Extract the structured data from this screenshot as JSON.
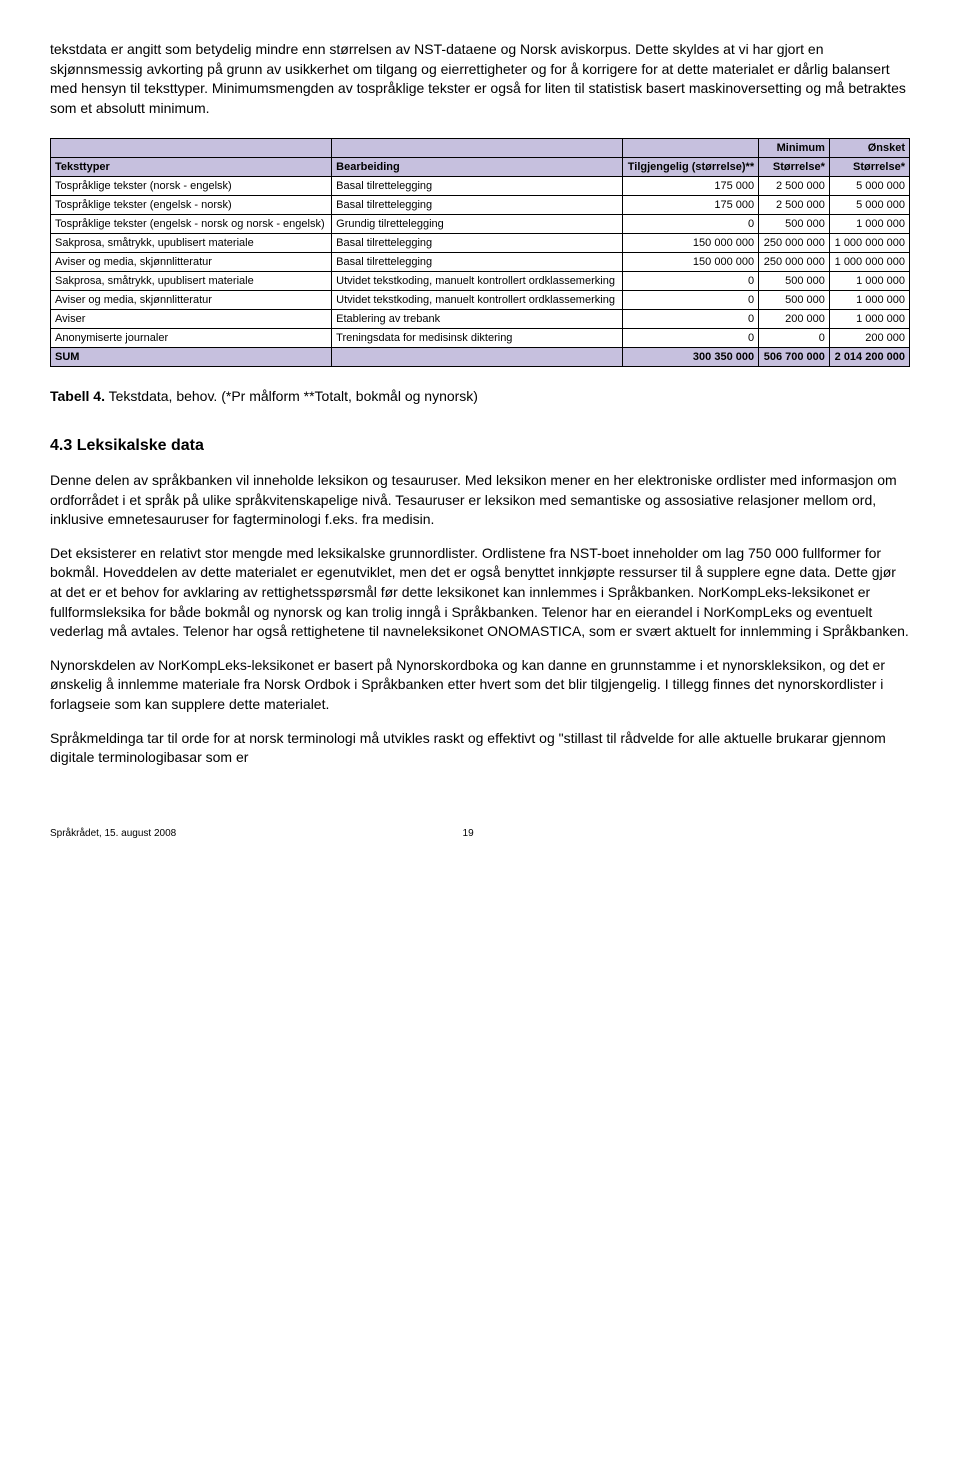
{
  "intro": {
    "p1": "tekstdata er angitt som betydelig mindre enn størrelsen av NST-dataene og Norsk aviskorpus. Dette skyldes at vi har gjort en skjønnsmessig avkorting på grunn av usikkerhet om tilgang og eierrettigheter og for å korrigere for at dette materialet er dårlig balansert med hensyn til teksttyper. Minimumsmengden av tospråklige tekster er også for liten til statistisk basert maskinoversetting og må betraktes som et absolutt minimum."
  },
  "table": {
    "top_headers": {
      "minimum": "Minimum",
      "onsket": "Ønsket"
    },
    "col_headers": {
      "teksttyper": "Teksttyper",
      "bearbeiding": "Bearbeiding",
      "tilgjengelig": "Tilgjengelig (størrelse)**",
      "storrelse1": "Størrelse*",
      "storrelse2": "Størrelse*"
    },
    "rows": [
      {
        "t": "Tospråklige tekster (norsk - engelsk)",
        "b": "Basal tilrettelegging",
        "c": "175 000",
        "d": "2 500 000",
        "e": "5 000 000"
      },
      {
        "t": "Tospråklige tekster (engelsk - norsk)",
        "b": "Basal tilrettelegging",
        "c": "175 000",
        "d": "2 500 000",
        "e": "5 000 000"
      },
      {
        "t": "Tospråklige tekster (engelsk - norsk og norsk - engelsk)",
        "b": "Grundig tilrettelegging",
        "c": "0",
        "d": "500 000",
        "e": "1 000 000"
      },
      {
        "t": "Sakprosa, småtrykk, upublisert materiale",
        "b": "Basal tilrettelegging",
        "c": "150 000 000",
        "d": "250 000 000",
        "e": "1 000 000 000"
      },
      {
        "t": "Aviser og media, skjønnlitteratur",
        "b": "Basal tilrettelegging",
        "c": "150 000 000",
        "d": "250 000 000",
        "e": "1 000 000 000"
      },
      {
        "t": "Sakprosa, småtrykk, upublisert materiale",
        "b": "Utvidet tekstkoding, manuelt kontrollert ordklassemerking",
        "c": "0",
        "d": "500 000",
        "e": "1 000 000"
      },
      {
        "t": "Aviser og media, skjønnlitteratur",
        "b": "Utvidet tekstkoding, manuelt kontrollert ordklassemerking",
        "c": "0",
        "d": "500 000",
        "e": "1 000 000"
      },
      {
        "t": "Aviser",
        "b": "Etablering av trebank",
        "c": "0",
        "d": "200 000",
        "e": "1 000 000"
      },
      {
        "t": "Anonymiserte journaler",
        "b": "Treningsdata for medisinsk diktering",
        "c": "0",
        "d": "0",
        "e": "200 000"
      }
    ],
    "sum": {
      "label": "SUM",
      "c": "300 350 000",
      "d": "506 700 000",
      "e": "2 014 200 000"
    }
  },
  "caption": {
    "bold": "Tabell 4.",
    "rest": " Tekstdata, behov. (*Pr målform **Totalt, bokmål og nynorsk)"
  },
  "section_head": "4.3 Leksikalske data",
  "body": {
    "p1": "Denne delen av språkbanken vil inneholde leksikon og tesauruser. Med leksikon mener en her elektroniske ordlister med informasjon om ordforrådet i et språk på ulike språkvitenskapelige nivå. Tesauruser er leksikon med semantiske og assosiative relasjoner mellom ord, inklusive emnetesauruser for fagterminologi f.eks. fra medisin.",
    "p2": "Det eksisterer en relativt stor mengde med leksikalske grunnordlister. Ordlistene fra NST-boet inneholder om lag 750 000 fullformer for bokmål. Hoveddelen av dette materialet er egenutviklet, men det er også benyttet innkjøpte ressurser til å supplere egne data. Dette gjør at det er et behov for avklaring av rettighetsspørsmål før dette leksikonet kan innlemmes i Språkbanken. NorKompLeks-leksikonet er fullformsleksika for både bokmål og nynorsk og kan trolig inngå i Språkbanken. Telenor har en eierandel i NorKompLeks og eventuelt vederlag må avtales. Telenor har også rettighetene til navneleksikonet ONOMASTICA, som er svært aktuelt for innlemming i Språkbanken.",
    "p3": "Nynorskdelen av NorKompLeks-leksikonet er basert på Nynorskordboka og kan danne en grunnstamme i et nynorskleksikon, og det er ønskelig å innlemme materiale fra Norsk Ordbok i Språkbanken etter hvert som det blir tilgjengelig. I tillegg finnes det nynorskordlister i forlagseie som kan supplere dette materialet.",
    "p4": "Språkmeldinga tar til orde for at norsk terminologi må utvikles raskt og effektivt og \"stillast til rådvelde for alle aktuelle brukarar gjennom digitale terminologibasar som er"
  },
  "footer": {
    "left": "Språkrådet, 15. august 2008",
    "page": "19"
  }
}
